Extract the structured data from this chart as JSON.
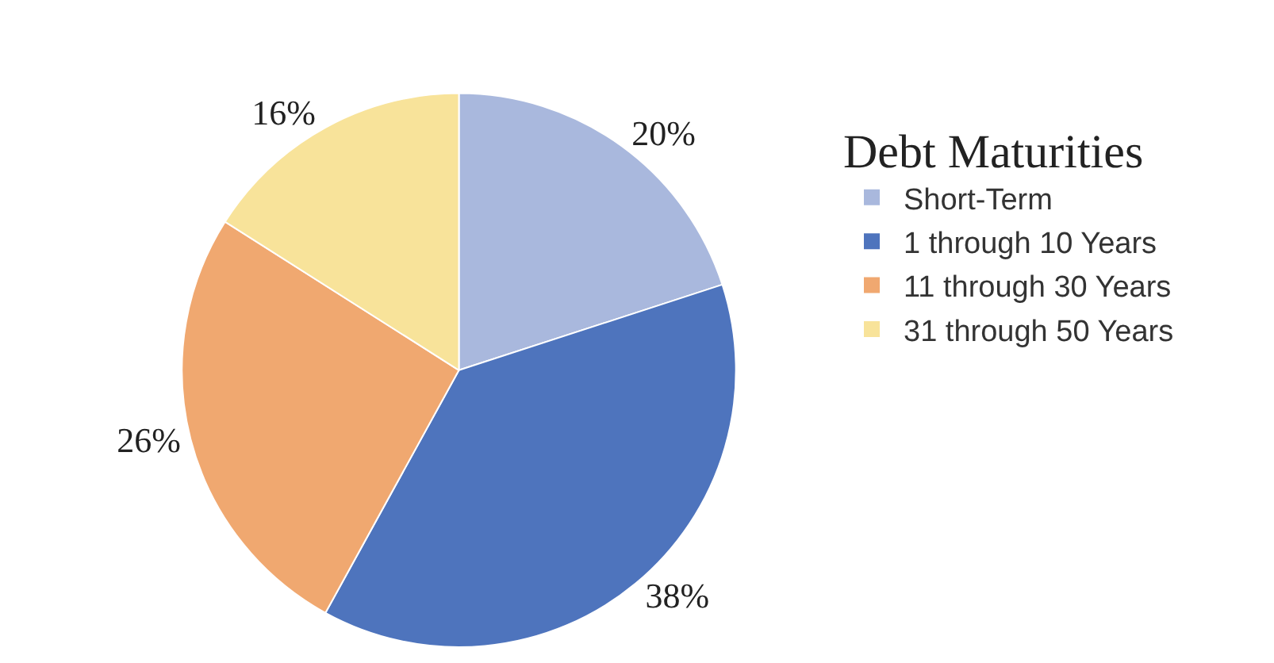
{
  "chart_data": {
    "type": "pie",
    "legend_title": "Debt Maturities",
    "categories": [
      "Short-Term",
      "1 through 10 Years",
      "11 through 30 Years",
      "31 through 50 Years"
    ],
    "values": [
      20,
      38,
      26,
      16
    ],
    "value_labels": [
      "20%",
      "38%",
      "26%",
      "16%"
    ],
    "colors": [
      "#a9b8dd",
      "#4e74bd",
      "#f0a870",
      "#f8e39a"
    ],
    "legend": "right"
  }
}
